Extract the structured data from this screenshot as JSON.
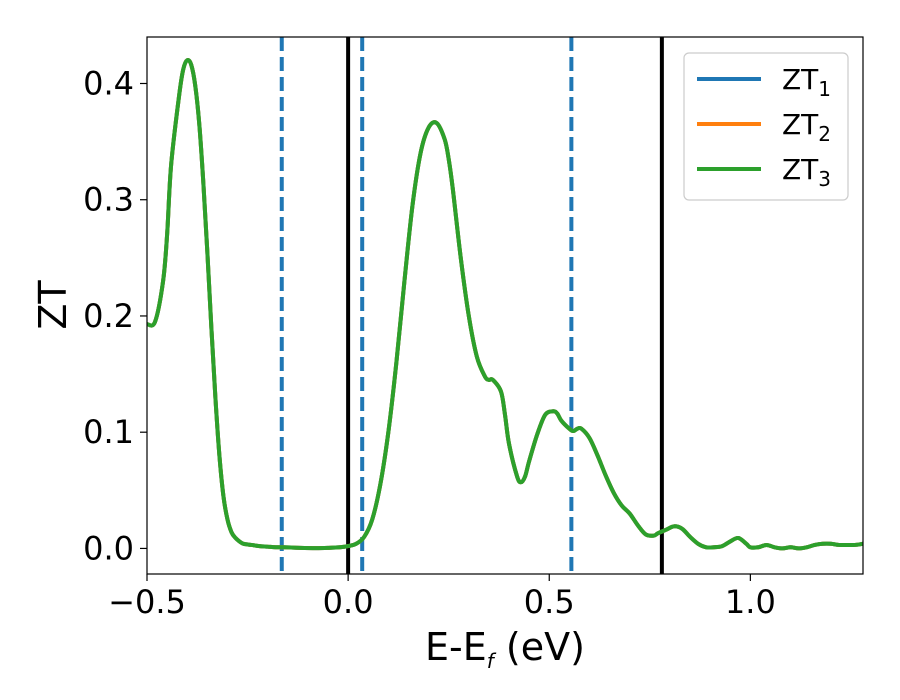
{
  "chart_data": {
    "type": "line",
    "title": "",
    "xlabel_main": "E-E",
    "xlabel_sub": "f",
    "xlabel_unit": " (eV)",
    "ylabel": "ZT",
    "xlim": [
      -0.5,
      1.28
    ],
    "ylim": [
      -0.022,
      0.44
    ],
    "xticks": [
      {
        "value": -0.5,
        "label": "−0.5"
      },
      {
        "value": 0.0,
        "label": "0.0"
      },
      {
        "value": 0.5,
        "label": "0.5"
      },
      {
        "value": 1.0,
        "label": "1.0"
      }
    ],
    "yticks": [
      {
        "value": 0.0,
        "label": "0.0"
      },
      {
        "value": 0.1,
        "label": "0.1"
      },
      {
        "value": 0.2,
        "label": "0.2"
      },
      {
        "value": 0.3,
        "label": "0.3"
      },
      {
        "value": 0.4,
        "label": "0.4"
      }
    ],
    "grid": false,
    "legend_position": "top-right",
    "series": [
      {
        "name": "ZT",
        "sub": "1",
        "color": "#1f77b4"
      },
      {
        "name": "ZT",
        "sub": "2",
        "color": "#ff7f0e"
      },
      {
        "name": "ZT",
        "sub": "3",
        "color": "#2ca02c"
      }
    ],
    "curve_x": [
      -0.5,
      -0.48,
      -0.46,
      -0.45,
      -0.44,
      -0.42,
      -0.41,
      -0.4,
      -0.39,
      -0.38,
      -0.37,
      -0.36,
      -0.35,
      -0.34,
      -0.33,
      -0.32,
      -0.31,
      -0.3,
      -0.29,
      -0.28,
      -0.27,
      -0.26,
      -0.24,
      -0.22,
      -0.2,
      -0.18,
      -0.16,
      -0.12,
      -0.08,
      -0.05,
      -0.02,
      0.0,
      0.02,
      0.04,
      0.06,
      0.08,
      0.1,
      0.12,
      0.14,
      0.16,
      0.18,
      0.2,
      0.22,
      0.24,
      0.25,
      0.26,
      0.28,
      0.3,
      0.32,
      0.34,
      0.35,
      0.36,
      0.38,
      0.39,
      0.4,
      0.42,
      0.43,
      0.44,
      0.45,
      0.47,
      0.49,
      0.51,
      0.52,
      0.53,
      0.55,
      0.56,
      0.57,
      0.58,
      0.6,
      0.62,
      0.64,
      0.66,
      0.68,
      0.7,
      0.72,
      0.74,
      0.76,
      0.77,
      0.79,
      0.81,
      0.83,
      0.85,
      0.87,
      0.89,
      0.91,
      0.93,
      0.95,
      0.97,
      0.99,
      1.0,
      1.02,
      1.04,
      1.06,
      1.08,
      1.1,
      1.12,
      1.14,
      1.16,
      1.18,
      1.2,
      1.22,
      1.24,
      1.26,
      1.28
    ],
    "curve_y": [
      0.193,
      0.195,
      0.23,
      0.27,
      0.33,
      0.39,
      0.412,
      0.42,
      0.416,
      0.398,
      0.365,
      0.315,
      0.255,
      0.19,
      0.13,
      0.08,
      0.045,
      0.025,
      0.014,
      0.009,
      0.006,
      0.004,
      0.003,
      0.002,
      0.0015,
      0.001,
      0.001,
      0.0005,
      0.0003,
      0.0005,
      0.001,
      0.002,
      0.004,
      0.01,
      0.025,
      0.055,
      0.1,
      0.16,
      0.23,
      0.295,
      0.34,
      0.362,
      0.366,
      0.352,
      0.335,
      0.31,
      0.25,
      0.2,
      0.165,
      0.148,
      0.145,
      0.145,
      0.135,
      0.115,
      0.09,
      0.062,
      0.057,
      0.062,
      0.075,
      0.098,
      0.115,
      0.118,
      0.116,
      0.11,
      0.103,
      0.101,
      0.103,
      0.103,
      0.095,
      0.08,
      0.063,
      0.048,
      0.037,
      0.03,
      0.02,
      0.012,
      0.011,
      0.013,
      0.016,
      0.019,
      0.017,
      0.01,
      0.004,
      0.001,
      0.001,
      0.002,
      0.006,
      0.009,
      0.004,
      0.001,
      0.001,
      0.003,
      0.001,
      0.0,
      0.001,
      0.0,
      0.001,
      0.003,
      0.004,
      0.004,
      0.003,
      0.003,
      0.003,
      0.004
    ],
    "vlines_dashed": [
      -0.165,
      0.035,
      0.555
    ],
    "vlines_dashed_color": "#1f77b4",
    "vlines_solid": [
      0.0,
      0.78
    ],
    "vlines_solid_color": "#000000"
  }
}
